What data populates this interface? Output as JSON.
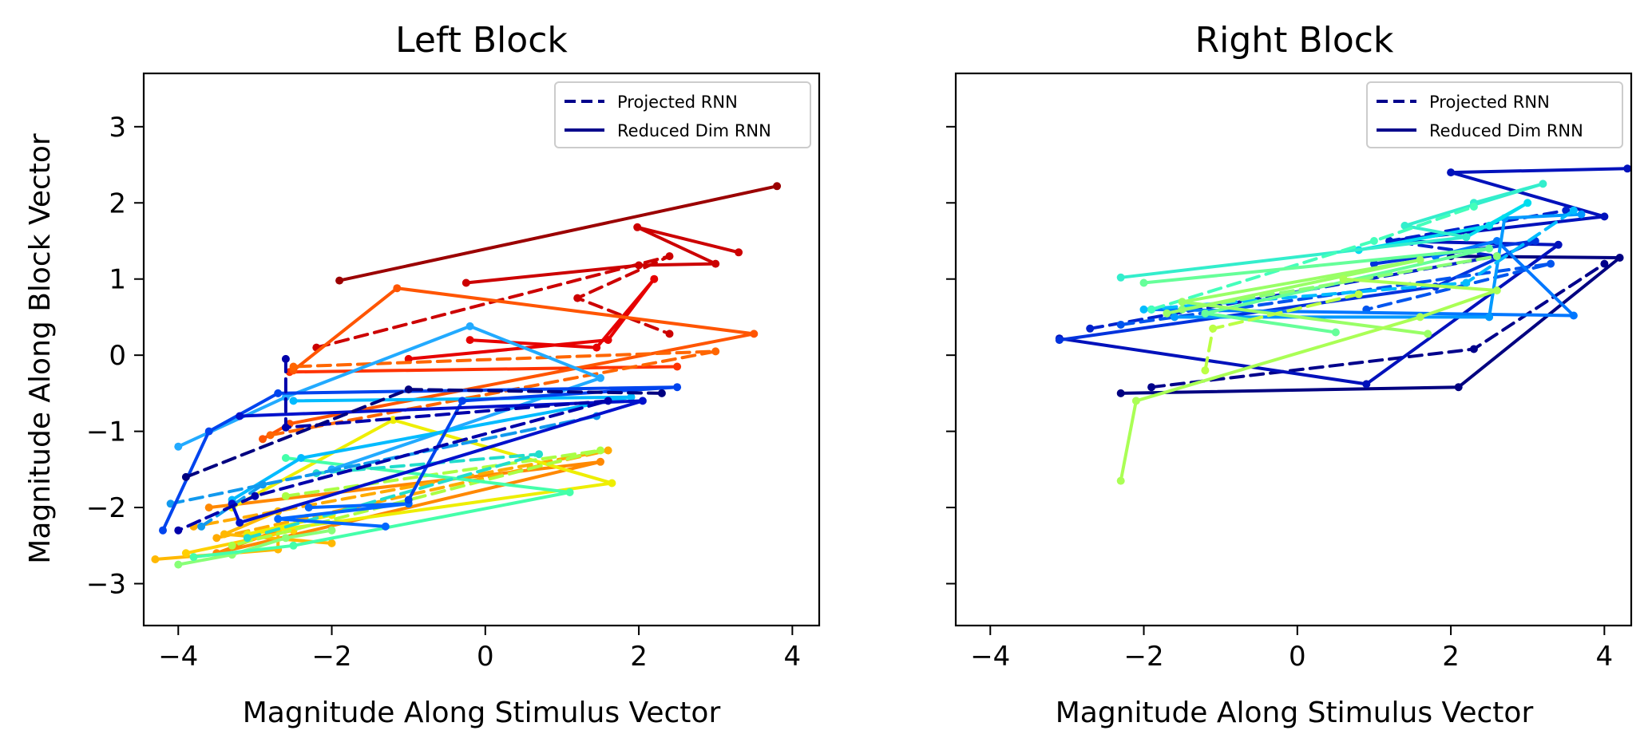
{
  "chart_data": [
    {
      "type": "line",
      "title": "Left Block",
      "xlabel": "Magnitude Along Stimulus Vector",
      "ylabel": "Magnitude Along Block Vector",
      "xlim": [
        -4.45,
        4.35
      ],
      "ylim": [
        -3.55,
        3.7
      ],
      "xticks": [
        "−4",
        "−2",
        "0",
        "2",
        "4"
      ],
      "yticks": [
        "−3",
        "−2",
        "−1",
        "0",
        "1",
        "2",
        "3"
      ],
      "grid": false,
      "legend_position": "top-right",
      "legend": [
        {
          "label": "Projected RNN",
          "style": "dashed",
          "color": "#00008b"
        },
        {
          "label": "Reduced Dim RNN",
          "style": "solid",
          "color": "#00008b"
        }
      ],
      "series": [
        {
          "color": "#9b0000",
          "style": "solid",
          "points": [
            [
              -1.9,
              0.98
            ],
            [
              3.8,
              2.22
            ]
          ]
        },
        {
          "color": "#cc0000",
          "style": "solid",
          "points": [
            [
              -0.25,
              0.95
            ],
            [
              2.0,
              1.18
            ],
            [
              3.0,
              1.2
            ],
            [
              1.98,
              1.68
            ],
            [
              3.3,
              1.35
            ]
          ]
        },
        {
          "color": "#cc0000",
          "style": "dashed",
          "points": [
            [
              -2.2,
              0.1
            ],
            [
              2.4,
              1.3
            ],
            [
              1.2,
              0.75
            ],
            [
              2.4,
              0.28
            ]
          ]
        },
        {
          "color": "#e60000",
          "style": "solid",
          "points": [
            [
              -1.0,
              -0.05
            ],
            [
              1.6,
              0.2
            ],
            [
              2.2,
              1.0
            ],
            [
              1.45,
              0.1
            ],
            [
              -0.2,
              0.2
            ]
          ]
        },
        {
          "color": "#ff3300",
          "style": "solid",
          "points": [
            [
              -2.55,
              -0.22
            ],
            [
              2.5,
              -0.15
            ]
          ]
        },
        {
          "color": "#ff5500",
          "style": "solid",
          "points": [
            [
              -2.5,
              -0.2
            ],
            [
              -1.15,
              0.88
            ],
            [
              3.5,
              0.28
            ],
            [
              -2.55,
              -0.9
            ],
            [
              -2.9,
              -1.1
            ]
          ]
        },
        {
          "color": "#ff6600",
          "style": "dashed",
          "points": [
            [
              -2.8,
              -1.05
            ],
            [
              3.0,
              0.05
            ],
            [
              -2.5,
              -0.15
            ]
          ]
        },
        {
          "color": "#ff8800",
          "style": "solid",
          "points": [
            [
              -3.6,
              -2.0
            ],
            [
              1.5,
              -1.4
            ],
            [
              -3.5,
              -2.6
            ],
            [
              -2.7,
              -2.3
            ]
          ]
        },
        {
          "color": "#ffaa00",
          "style": "dashed",
          "points": [
            [
              -3.5,
              -2.4
            ],
            [
              1.6,
              -1.25
            ],
            [
              -3.8,
              -2.25
            ]
          ]
        },
        {
          "color": "#ffb800",
          "style": "solid",
          "points": [
            [
              -4.3,
              -2.68
            ],
            [
              -2.7,
              -2.55
            ],
            [
              -2.7,
              -2.05
            ],
            [
              -3.4,
              -2.35
            ],
            [
              -2.0,
              -2.47
            ]
          ]
        },
        {
          "color": "#ffd000",
          "style": "solid",
          "points": [
            [
              -3.9,
              -2.6
            ],
            [
              -2.5,
              -2.3
            ]
          ]
        },
        {
          "color": "#eeee00",
          "style": "solid",
          "points": [
            [
              -3.3,
              -2.0
            ],
            [
              -1.2,
              -0.85
            ],
            [
              1.65,
              -1.68
            ],
            [
              -3.1,
              -2.35
            ],
            [
              -2.0,
              -2.1
            ]
          ]
        },
        {
          "color": "#aaff44",
          "style": "dashed",
          "points": [
            [
              -2.6,
              -1.85
            ],
            [
              1.5,
              -1.25
            ],
            [
              -3.3,
              -2.5
            ]
          ]
        },
        {
          "color": "#88ff77",
          "style": "solid",
          "points": [
            [
              -4.0,
              -2.75
            ],
            [
              -3.3,
              -2.62
            ],
            [
              -2.6,
              -2.4
            ],
            [
              -2.0,
              -2.3
            ]
          ]
        },
        {
          "color": "#44ffaa",
          "style": "solid",
          "points": [
            [
              -2.6,
              -1.35
            ],
            [
              1.1,
              -1.8
            ],
            [
              -2.5,
              -2.5
            ],
            [
              -3.8,
              -2.65
            ]
          ]
        },
        {
          "color": "#22ddcc",
          "style": "dashed",
          "points": [
            [
              -3.1,
              -2.4
            ],
            [
              0.7,
              -1.3
            ],
            [
              -2.2,
              -1.55
            ]
          ]
        },
        {
          "color": "#22aaff",
          "style": "solid",
          "points": [
            [
              -4.0,
              -1.2
            ],
            [
              -2.6,
              -0.55
            ],
            [
              -0.2,
              0.38
            ],
            [
              1.5,
              -0.3
            ],
            [
              -2.0,
              -1.5
            ]
          ]
        },
        {
          "color": "#00bbff",
          "style": "solid",
          "points": [
            [
              -2.5,
              -0.6
            ],
            [
              1.9,
              -0.55
            ],
            [
              -2.4,
              -1.35
            ],
            [
              -3.3,
              -1.9
            ]
          ]
        },
        {
          "color": "#1199ee",
          "style": "dashed",
          "points": [
            [
              -4.1,
              -1.95
            ],
            [
              1.45,
              -0.8
            ],
            [
              -2.9,
              -1.7
            ],
            [
              -3.7,
              -2.25
            ]
          ]
        },
        {
          "color": "#0066ff",
          "style": "solid",
          "points": [
            [
              -2.3,
              -2.0
            ],
            [
              -1.0,
              -1.95
            ],
            [
              -2.7,
              -2.15
            ],
            [
              -1.3,
              -2.25
            ]
          ]
        },
        {
          "color": "#0044ee",
          "style": "solid",
          "points": [
            [
              -4.2,
              -2.3
            ],
            [
              -3.6,
              -1.0
            ],
            [
              -2.7,
              -0.5
            ],
            [
              2.5,
              -0.42
            ],
            [
              -0.3,
              -0.6
            ],
            [
              -1.0,
              -1.9
            ]
          ]
        },
        {
          "color": "#0011cc",
          "style": "solid",
          "points": [
            [
              -3.2,
              -0.8
            ],
            [
              2.05,
              -0.6
            ],
            [
              -3.2,
              -2.2
            ],
            [
              -3.3,
              -1.95
            ]
          ]
        },
        {
          "color": "#0000aa",
          "style": "dashed",
          "points": [
            [
              -2.6,
              -0.05
            ],
            [
              -2.6,
              -0.95
            ],
            [
              1.6,
              -0.6
            ],
            [
              -3.0,
              -1.85
            ],
            [
              -4.0,
              -2.3
            ]
          ]
        },
        {
          "color": "#000080",
          "style": "dashed",
          "points": [
            [
              -3.9,
              -1.6
            ],
            [
              -1.0,
              -0.45
            ],
            [
              2.3,
              -0.5
            ]
          ]
        }
      ]
    },
    {
      "type": "line",
      "title": "Right Block",
      "xlabel": "Magnitude Along Stimulus Vector",
      "ylabel": "",
      "xlim": [
        -4.45,
        4.35
      ],
      "ylim": [
        -3.55,
        3.7
      ],
      "xticks": [
        "−4",
        "−2",
        "0",
        "2",
        "4"
      ],
      "yticks": [],
      "grid": false,
      "legend_position": "top-right",
      "legend": [
        {
          "label": "Projected RNN",
          "style": "dashed",
          "color": "#00008b"
        },
        {
          "label": "Reduced Dim RNN",
          "style": "solid",
          "color": "#00008b"
        }
      ],
      "series": [
        {
          "color": "#000080",
          "style": "solid",
          "points": [
            [
              -2.3,
              -0.5
            ],
            [
              2.1,
              -0.42
            ],
            [
              4.2,
              1.28
            ],
            [
              2.0,
              1.3
            ]
          ]
        },
        {
          "color": "#00008b",
          "style": "dashed",
          "points": [
            [
              -1.9,
              -0.42
            ],
            [
              2.3,
              0.08
            ],
            [
              4.0,
              1.2
            ]
          ]
        },
        {
          "color": "#0011bb",
          "style": "solid",
          "points": [
            [
              -3.1,
              0.22
            ],
            [
              0.9,
              -0.38
            ],
            [
              3.4,
              1.45
            ],
            [
              1.2,
              1.5
            ],
            [
              4.0,
              1.82
            ],
            [
              2.0,
              2.4
            ],
            [
              4.3,
              2.45
            ]
          ]
        },
        {
          "color": "#0022cc",
          "style": "dashed",
          "points": [
            [
              -2.7,
              0.35
            ],
            [
              2.6,
              1.3
            ],
            [
              1.2,
              1.5
            ],
            [
              3.5,
              1.9
            ]
          ]
        },
        {
          "color": "#0033dd",
          "style": "solid",
          "points": [
            [
              -3.1,
              0.2
            ],
            [
              1.8,
              0.9
            ],
            [
              3.1,
              1.5
            ],
            [
              1.0,
              1.2
            ]
          ]
        },
        {
          "color": "#0055ee",
          "style": "dashed",
          "points": [
            [
              -2.3,
              0.4
            ],
            [
              3.3,
              1.2
            ],
            [
              0.9,
              0.6
            ]
          ]
        },
        {
          "color": "#0077ff",
          "style": "solid",
          "points": [
            [
              -1.9,
              0.6
            ],
            [
              3.6,
              0.52
            ],
            [
              2.6,
              1.5
            ],
            [
              1.8,
              1.3
            ]
          ]
        },
        {
          "color": "#0099ff",
          "style": "solid",
          "points": [
            [
              -1.6,
              0.5
            ],
            [
              2.5,
              0.5
            ],
            [
              2.7,
              1.8
            ],
            [
              3.7,
              1.85
            ]
          ]
        },
        {
          "color": "#00bbff",
          "style": "dashed",
          "points": [
            [
              -2.0,
              0.6
            ],
            [
              2.2,
              0.95
            ],
            [
              3.6,
              1.9
            ]
          ]
        },
        {
          "color": "#00ddee",
          "style": "solid",
          "points": [
            [
              0.8,
              1.38
            ],
            [
              2.5,
              1.7
            ],
            [
              3.0,
              2.0
            ],
            [
              2.2,
              1.55
            ]
          ]
        },
        {
          "color": "#33eecc",
          "style": "solid",
          "points": [
            [
              -2.3,
              1.02
            ],
            [
              2.2,
              1.55
            ],
            [
              1.4,
              1.7
            ],
            [
              3.2,
              2.25
            ],
            [
              2.3,
              2.0
            ]
          ]
        },
        {
          "color": "#44ffbb",
          "style": "dashed",
          "points": [
            [
              -1.9,
              0.6
            ],
            [
              1.0,
              1.5
            ],
            [
              2.3,
              1.95
            ]
          ]
        },
        {
          "color": "#66ff99",
          "style": "solid",
          "points": [
            [
              -2.0,
              0.95
            ],
            [
              2.5,
              1.4
            ],
            [
              -1.2,
              0.55
            ],
            [
              0.5,
              0.3
            ]
          ]
        },
        {
          "color": "#88ff77",
          "style": "dashed",
          "points": [
            [
              -1.5,
              0.6
            ],
            [
              2.6,
              1.3
            ]
          ]
        },
        {
          "color": "#99ff66",
          "style": "solid",
          "points": [
            [
              -1.7,
              0.55
            ],
            [
              1.6,
              1.25
            ],
            [
              -1.5,
              0.7
            ],
            [
              1.7,
              0.28
            ]
          ]
        },
        {
          "color": "#aaff55",
          "style": "solid",
          "points": [
            [
              -2.3,
              -1.65
            ],
            [
              -2.1,
              -0.6
            ],
            [
              1.6,
              0.5
            ],
            [
              2.6,
              0.85
            ],
            [
              0.6,
              1.0
            ]
          ]
        },
        {
          "color": "#bbff44",
          "style": "dashed",
          "points": [
            [
              -1.2,
              -0.2
            ],
            [
              -1.1,
              0.35
            ],
            [
              0.8,
              0.8
            ]
          ]
        }
      ]
    }
  ]
}
